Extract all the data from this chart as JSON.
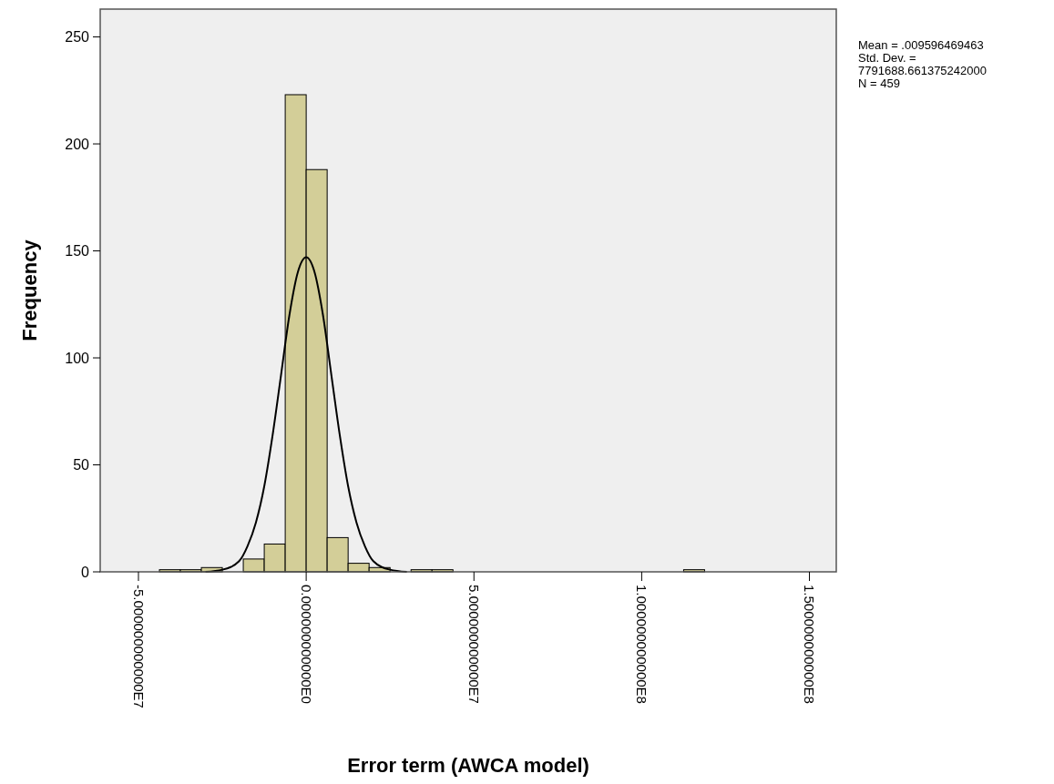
{
  "chart_data": {
    "type": "histogram",
    "xlabel": "Error term (AWCA model)",
    "ylabel": "Frequency",
    "bins": [
      -43750000,
      -37500000,
      -31250000,
      -25000000,
      -18750000,
      -12500000,
      -6250000,
      0,
      6250000,
      12500000,
      18750000,
      25000000,
      31250000,
      37500000,
      43750000,
      50000000,
      56250000,
      62500000,
      68750000,
      75000000,
      81250000,
      87500000,
      93750000,
      100000000,
      106250000,
      112500000,
      118750000
    ],
    "values": [
      1,
      1,
      2,
      0,
      6,
      13,
      223,
      188,
      16,
      4,
      2,
      0,
      1,
      1,
      0,
      0,
      0,
      0,
      0,
      0,
      0,
      0,
      0,
      0,
      0,
      1
    ],
    "color": "#d3ce98",
    "series": [
      {
        "type": "line",
        "color": "#000000",
        "x": [
          -30000000,
          -25000000,
          -20000000,
          -17500000,
          -15000000,
          -12500000,
          -10000000,
          -7500000,
          -5000000,
          -2500000,
          0,
          2500000,
          5000000,
          7500000,
          10000000,
          12500000,
          15000000,
          17500000,
          20000000,
          25000000,
          30000000
        ],
        "values": [
          0,
          1,
          5,
          12,
          23,
          40,
          64,
          92,
          120,
          140,
          147,
          140,
          120,
          92,
          64,
          40,
          23,
          12,
          5,
          1,
          0
        ]
      }
    ],
    "xlim": [
      -61400000,
      158000000
    ],
    "xticks": [
      {
        "value": -50000000,
        "label": "-5.000000000000E7"
      },
      {
        "value": 0,
        "label": "0.000000000000E0"
      },
      {
        "value": 50000000,
        "label": "5.000000000000E7"
      },
      {
        "value": 100000000,
        "label": "1.000000000000E8"
      },
      {
        "value": 150000000,
        "label": "1.500000000000E8"
      }
    ],
    "ylim": [
      0,
      263
    ],
    "yticks": [
      0,
      50,
      100,
      150,
      200,
      250
    ],
    "grid": false,
    "annotations": [
      "Mean = .009596469463",
      "Std. Dev. =",
      "7791688.661375242000",
      "N = 459"
    ]
  }
}
